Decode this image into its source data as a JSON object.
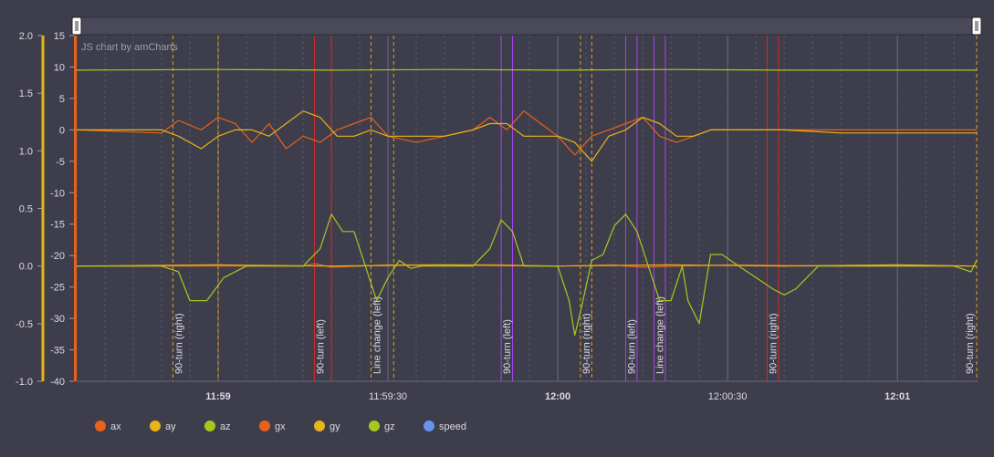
{
  "chart_data": {
    "type": "line",
    "credit": "JS chart by amCharts",
    "y_left_outer": {
      "ticks": [
        "2.0",
        "1.5",
        "1.0",
        "0.5",
        "0.0",
        "-0.5",
        "-1.0"
      ],
      "range": [
        -1.0,
        2.0
      ],
      "color": "#e8b41a"
    },
    "y_left_inner": {
      "ticks": [
        "15",
        "10",
        "5",
        "0",
        "-5",
        "-10",
        "-15",
        "-20",
        "-25",
        "-30",
        "-35",
        "-40"
      ],
      "range": [
        -40,
        15
      ],
      "color": "#e8621b"
    },
    "x_ticks": [
      {
        "label": "11:59",
        "bold": true,
        "t": 0
      },
      {
        "label": "11:59:30",
        "bold": false,
        "t": 30
      },
      {
        "label": "12:00",
        "bold": true,
        "t": 60
      },
      {
        "label": "12:00:30",
        "bold": false,
        "t": 90
      },
      {
        "label": "12:01",
        "bold": true,
        "t": 120
      }
    ],
    "x_range_s": [
      -25,
      134
    ],
    "events": [
      {
        "label": "90-turn (right)",
        "start": -8,
        "end": 0,
        "color": "#e6a020"
      },
      {
        "label": "90-turn (left)",
        "start": 17,
        "end": 20,
        "color": "#d42a2a"
      },
      {
        "label": "Line change (left)",
        "start": 27,
        "end": 31,
        "color": "#e6a020"
      },
      {
        "label": "90-turn (left)",
        "start": 50,
        "end": 52,
        "color": "#a845e8"
      },
      {
        "label": "90-turn (right)",
        "start": 64,
        "end": 66,
        "color": "#e6a020"
      },
      {
        "label": "90-turn (left)",
        "start": 72,
        "end": 74,
        "color": "#a845e8"
      },
      {
        "label": "Line change (left)",
        "start": 77,
        "end": 79,
        "color": "#a845e8"
      },
      {
        "label": "90-turn (right)",
        "start": 97,
        "end": 99,
        "color": "#d42a2a"
      },
      {
        "label": "90-turn (right)",
        "start": 134,
        "end": 134,
        "color": "#e6a020"
      }
    ],
    "series": [
      {
        "name": "ax",
        "color": "#e8621b",
        "axis": "inner",
        "x": [
          -25,
          -10,
          -7,
          -3,
          0,
          3,
          6,
          9,
          12,
          15,
          18,
          21,
          24,
          27,
          30,
          35,
          40,
          45,
          48,
          51,
          54,
          57,
          60,
          63,
          66,
          69,
          72,
          75,
          78,
          81,
          84,
          87,
          90,
          100,
          110,
          120,
          134
        ],
        "y": [
          0,
          -0.5,
          1.5,
          0,
          2,
          1,
          -2,
          1,
          -3,
          -1,
          -2,
          0,
          1,
          2,
          -1,
          -2,
          -1,
          0,
          2,
          0,
          3,
          1,
          -1,
          -4,
          -1,
          0,
          1,
          2,
          -1,
          -2,
          -1,
          0,
          0,
          0,
          0,
          0,
          0
        ]
      },
      {
        "name": "ay",
        "color": "#e8b41a",
        "axis": "inner",
        "x": [
          -25,
          -10,
          -7,
          -3,
          0,
          3,
          6,
          9,
          12,
          15,
          18,
          21,
          24,
          27,
          30,
          35,
          40,
          45,
          48,
          51,
          54,
          57,
          60,
          63,
          66,
          69,
          72,
          75,
          78,
          81,
          84,
          87,
          90,
          100,
          110,
          120,
          134
        ],
        "y": [
          0,
          0,
          -1,
          -3,
          -1,
          0,
          0,
          -1,
          1,
          3,
          2,
          -1,
          -1,
          0,
          -1,
          -1,
          -1,
          0,
          1,
          1,
          -1,
          -1,
          -1,
          -2,
          -5,
          -1,
          0,
          2,
          1,
          -1,
          -1,
          0,
          0,
          0,
          -0.5,
          -0.5,
          -0.5
        ]
      },
      {
        "name": "az",
        "color": "#a8c81e",
        "axis": "inner",
        "x": [
          -25,
          0,
          20,
          40,
          60,
          80,
          100,
          120,
          134
        ],
        "y": [
          9.5,
          9.6,
          9.5,
          9.6,
          9.5,
          9.6,
          9.5,
          9.5,
          9.5
        ]
      },
      {
        "name": "gx",
        "color": "#e8621b",
        "axis": "outer",
        "x": [
          -25,
          0,
          15,
          17,
          20,
          30,
          50,
          60,
          70,
          72,
          75,
          90,
          110,
          134
        ],
        "y": [
          0,
          0,
          0,
          0.02,
          -0.01,
          0.01,
          0.01,
          0,
          0.01,
          0,
          -0.01,
          0.01,
          0,
          0
        ]
      },
      {
        "name": "gy",
        "color": "#e8b41a",
        "axis": "outer",
        "x": [
          -25,
          0,
          20,
          40,
          60,
          80,
          100,
          120,
          134
        ],
        "y": [
          0,
          0.01,
          0,
          0.01,
          0,
          0.01,
          0,
          0.01,
          0
        ]
      },
      {
        "name": "gz",
        "color": "#a8c81e",
        "axis": "outer",
        "x": [
          -25,
          -10,
          -7,
          -5,
          -2,
          1,
          5,
          10,
          15,
          18,
          20,
          22,
          24,
          26,
          28,
          30,
          32,
          34,
          36,
          40,
          45,
          48,
          50,
          52,
          54,
          56,
          58,
          60,
          62,
          63,
          64,
          66,
          68,
          70,
          72,
          74,
          76,
          78,
          80,
          82,
          83,
          85,
          86,
          87,
          89,
          92,
          95,
          98,
          100,
          102,
          104,
          106,
          110,
          120,
          130,
          133,
          134
        ],
        "y": [
          0,
          0,
          -0.05,
          -0.3,
          -0.3,
          -0.1,
          0,
          0,
          0,
          0.15,
          0.45,
          0.3,
          0.3,
          0,
          -0.3,
          -0.1,
          0.05,
          -0.02,
          0,
          0,
          0,
          0.15,
          0.4,
          0.3,
          0,
          0,
          0,
          0,
          -0.3,
          -0.6,
          -0.4,
          0.05,
          0.1,
          0.35,
          0.45,
          0.3,
          0,
          -0.3,
          -0.3,
          0,
          -0.3,
          -0.5,
          -0.2,
          0.1,
          0.1,
          0,
          -0.1,
          -0.2,
          -0.25,
          -0.2,
          -0.1,
          0,
          0,
          0,
          0,
          -0.05,
          0.05
        ]
      },
      {
        "name": "speed",
        "color": "#6b93ec",
        "axis": "outer",
        "x": [],
        "y": []
      }
    ]
  },
  "legend": [
    {
      "name": "ax",
      "color": "#e8621b"
    },
    {
      "name": "ay",
      "color": "#e8b41a"
    },
    {
      "name": "az",
      "color": "#a8c81e"
    },
    {
      "name": "gx",
      "color": "#e8621b"
    },
    {
      "name": "gy",
      "color": "#e8b41a"
    },
    {
      "name": "gz",
      "color": "#a8c81e"
    },
    {
      "name": "speed",
      "color": "#6b93ec"
    }
  ]
}
